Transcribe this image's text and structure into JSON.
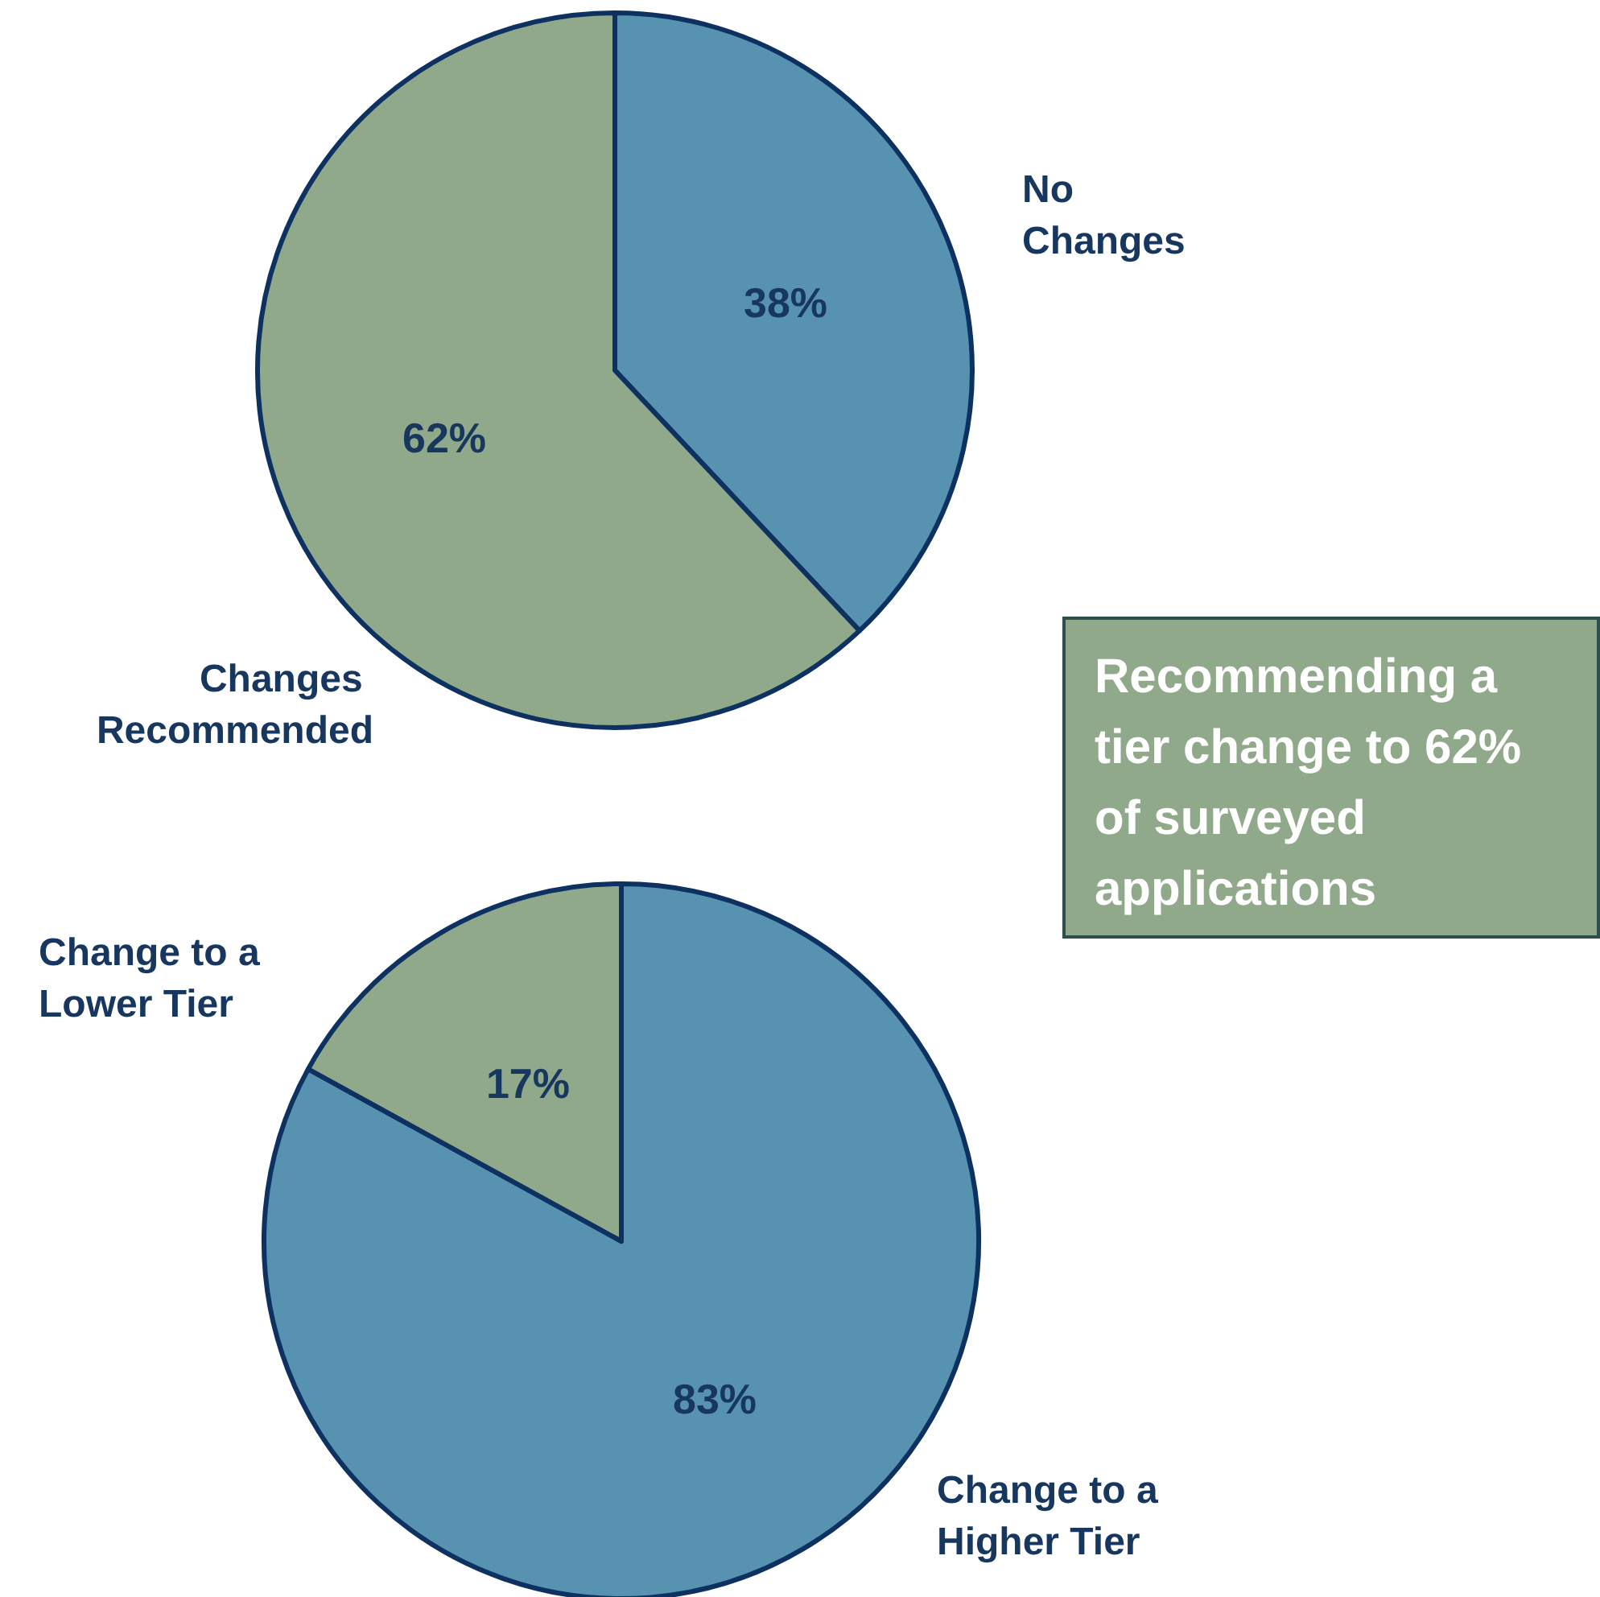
{
  "chart_data": [
    {
      "type": "pie",
      "categories": [
        "No Changes",
        "Changes Recommended"
      ],
      "values": [
        38,
        62
      ],
      "colors": [
        "#5793b0",
        "#8fa98a"
      ],
      "value_labels": [
        "38%",
        "62%"
      ],
      "legend": false
    },
    {
      "type": "pie",
      "categories": [
        "Change to a Higher Tier",
        "Change to a Lower Tier"
      ],
      "values": [
        83,
        17
      ],
      "colors": [
        "#5793b0",
        "#8fa98a"
      ],
      "value_labels": [
        "83%",
        "17%"
      ],
      "legend": false
    },
    {
      "type": "other",
      "annotations": [
        "Recommending a tier change to 62% of surveyed applications"
      ]
    }
  ]
}
